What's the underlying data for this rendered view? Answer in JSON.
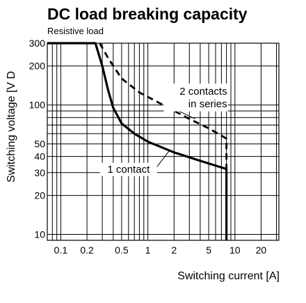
{
  "chart_data": {
    "type": "line",
    "title": "DC load breaking capacity",
    "subtitle": "Resistive load",
    "xlabel": "Switching current [A]",
    "ylabel": "Switching voltage [V D",
    "xscale": "log",
    "yscale": "log",
    "xlim": [
      0.07,
      32
    ],
    "ylim": [
      9,
      300
    ],
    "grid": true,
    "x_ticks": [
      {
        "value": 0.1,
        "label": "0.1"
      },
      {
        "value": 0.2,
        "label": "0.2"
      },
      {
        "value": 0.5,
        "label": "0.5"
      },
      {
        "value": 1,
        "label": "1"
      },
      {
        "value": 2,
        "label": "2"
      },
      {
        "value": 5,
        "label": "5"
      },
      {
        "value": 10,
        "label": "10"
      },
      {
        "value": 20,
        "label": "20"
      }
    ],
    "y_ticks": [
      {
        "value": 10,
        "label": "10"
      },
      {
        "value": 20,
        "label": "20"
      },
      {
        "value": 30,
        "label": "30"
      },
      {
        "value": 40,
        "label": "40"
      },
      {
        "value": 50,
        "label": "50"
      },
      {
        "value": 100,
        "label": "100"
      },
      {
        "value": 200,
        "label": "200"
      },
      {
        "value": 300,
        "label": "300"
      }
    ],
    "series": [
      {
        "style": "solid",
        "x": [
          0.07,
          0.25,
          0.3,
          0.35,
          0.4,
          0.5,
          0.7,
          1,
          2,
          4,
          8,
          8,
          8
        ],
        "y": [
          300,
          300,
          200,
          130,
          95,
          72,
          60,
          52,
          43,
          37,
          32,
          20,
          9
        ]
      },
      {
        "style": "dashed",
        "x": [
          0.28,
          0.35,
          0.5,
          0.8,
          1.5,
          3,
          5,
          8,
          8
        ],
        "y": [
          300,
          230,
          160,
          125,
          100,
          78,
          66,
          55,
          32
        ]
      }
    ],
    "annotations": [
      {
        "id": "one_contact",
        "text": "1 contact",
        "x": 0.6,
        "y": 30,
        "target_x": 1.8,
        "target_y": 45
      },
      {
        "id": "two_contacts",
        "lines": [
          "2 contacts",
          "in series"
        ],
        "x": 8,
        "y": 120,
        "target_x": 3.5,
        "target_y": 78
      }
    ]
  }
}
